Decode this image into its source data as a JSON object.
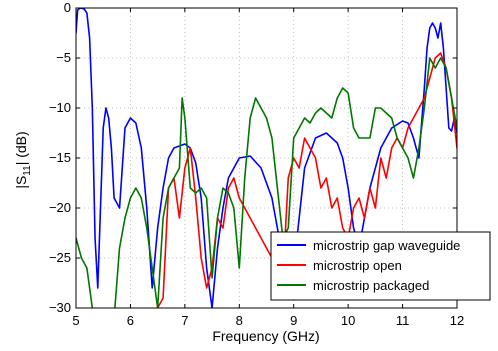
{
  "chart_data": {
    "type": "line",
    "title": "",
    "xlabel": "Frequency (GHz)",
    "ylabel": "|S11| (dB)",
    "ylabel_parts": {
      "prefix": "|S",
      "sub": "11",
      "suffix": "| (dB)"
    },
    "xlim": [
      5,
      12
    ],
    "ylim": [
      -30,
      0
    ],
    "xticks": [
      5,
      6,
      7,
      8,
      9,
      10,
      11,
      12
    ],
    "yticks": [
      0,
      -5,
      -10,
      -15,
      -20,
      -25,
      -30
    ],
    "ytick_labels": [
      "0",
      "−5",
      "−10",
      "−15",
      "−20",
      "−25",
      "−30"
    ],
    "grid": true,
    "legend_position": "bottom-right",
    "series": [
      {
        "name": "microstrip gap waveguide",
        "color": "#0000ff",
        "x": [
          5.0,
          5.03,
          5.08,
          5.15,
          5.2,
          5.25,
          5.3,
          5.35,
          5.4,
          5.45,
          5.5,
          5.55,
          5.6,
          5.65,
          5.7,
          5.8,
          5.9,
          6.0,
          6.1,
          6.2,
          6.3,
          6.4,
          6.5,
          6.6,
          6.7,
          6.8,
          6.9,
          7.0,
          7.1,
          7.2,
          7.3,
          7.4,
          7.5,
          7.6,
          7.7,
          7.8,
          7.9,
          8.0,
          8.2,
          8.4,
          8.6,
          8.8,
          8.9,
          9.0,
          9.1,
          9.2,
          9.4,
          9.6,
          9.8,
          9.9,
          10.0,
          10.1,
          10.2,
          10.4,
          10.6,
          10.8,
          11.0,
          11.1,
          11.2,
          11.3,
          11.4,
          11.45,
          11.5,
          11.55,
          11.6,
          11.65,
          11.7,
          11.75,
          11.8,
          11.85,
          11.9,
          11.95,
          12.0
        ],
        "y": [
          -2.5,
          -0.2,
          0.0,
          -0.1,
          -0.5,
          -3,
          -10,
          -23,
          -28,
          -20,
          -12,
          -10,
          -11,
          -14,
          -19,
          -20,
          -12,
          -11,
          -11.5,
          -14,
          -20,
          -28,
          -22,
          -18,
          -15,
          -14,
          -13.8,
          -13.6,
          -14,
          -15.5,
          -19,
          -26,
          -30,
          -24,
          -20,
          -17,
          -16,
          -15,
          -14.8,
          -16,
          -19,
          -25,
          -28,
          -26,
          -21,
          -16,
          -13,
          -12.5,
          -13.5,
          -15,
          -18,
          -22,
          -24,
          -18,
          -14,
          -12,
          -11.3,
          -11.5,
          -13,
          -15,
          -8,
          -4,
          -2,
          -1.5,
          -2,
          -3,
          -1.5,
          -4,
          -8,
          -12,
          -12.3,
          -11,
          -12.5
        ]
      },
      {
        "name": "microstrip open",
        "color": "#ff0000",
        "x": [
          5.0,
          5.2,
          5.4,
          5.6,
          5.8,
          6.0,
          6.2,
          6.4,
          6.6,
          6.7,
          6.8,
          6.9,
          7.0,
          7.1,
          7.2,
          7.3,
          7.4,
          7.5,
          7.6,
          7.7,
          7.8,
          7.9,
          8.0,
          8.1,
          8.2,
          8.4,
          8.6,
          8.8,
          8.9,
          9.0,
          9.1,
          9.2,
          9.3,
          9.4,
          9.5,
          9.6,
          9.7,
          9.8,
          9.9,
          10.0,
          10.1,
          10.2,
          10.3,
          10.4,
          10.5,
          10.6,
          10.7,
          10.8,
          10.9,
          11.0,
          11.1,
          11.2,
          11.3,
          11.4,
          11.5,
          11.6,
          11.7,
          11.8,
          11.9,
          12.0
        ],
        "y": [
          -31,
          -31,
          -31,
          -31,
          -31,
          -31,
          -31,
          -31,
          -29,
          -18,
          -17,
          -21,
          -16,
          -14,
          -19,
          -25,
          -28,
          -26,
          -21,
          -22,
          -18,
          -17,
          -19,
          -20,
          -21,
          -23,
          -25,
          -27,
          -17,
          -15,
          -16,
          -13,
          -14,
          -15,
          -18,
          -17,
          -20,
          -19,
          -22,
          -23,
          -20,
          -19,
          -21,
          -18,
          -20,
          -15,
          -17,
          -14,
          -13,
          -14,
          -12,
          -11,
          -10,
          -9,
          -7,
          -5,
          -4.5,
          -6,
          -9,
          -14
        ]
      },
      {
        "name": "microstrip packaged",
        "color": "#007700",
        "x": [
          5.0,
          5.1,
          5.2,
          5.3,
          5.4,
          5.5,
          5.6,
          5.7,
          5.8,
          5.9,
          6.0,
          6.1,
          6.2,
          6.3,
          6.4,
          6.5,
          6.6,
          6.7,
          6.8,
          6.9,
          6.95,
          7.0,
          7.1,
          7.2,
          7.3,
          7.4,
          7.5,
          7.6,
          7.7,
          7.8,
          7.9,
          8.0,
          8.1,
          8.2,
          8.3,
          8.4,
          8.5,
          8.6,
          8.7,
          8.8,
          8.9,
          9.0,
          9.1,
          9.2,
          9.3,
          9.4,
          9.5,
          9.6,
          9.7,
          9.8,
          9.9,
          10.0,
          10.1,
          10.2,
          10.3,
          10.4,
          10.5,
          10.6,
          10.7,
          10.8,
          10.9,
          11.0,
          11.1,
          11.2,
          11.3,
          11.4,
          11.5,
          11.6,
          11.7,
          11.8,
          11.9,
          12.0
        ],
        "y": [
          -23,
          -25,
          -26,
          -30,
          -31,
          -31,
          -31,
          -31,
          -24,
          -21,
          -19,
          -18,
          -19,
          -22,
          -26,
          -30,
          -21,
          -18,
          -17,
          -16,
          -9,
          -11,
          -18,
          -18.5,
          -18,
          -19,
          -27,
          -21,
          -18,
          -18.5,
          -20,
          -26,
          -17,
          -11,
          -9,
          -10,
          -11,
          -13,
          -18,
          -23,
          -22,
          -13,
          -12,
          -11,
          -11.5,
          -10.5,
          -10,
          -10.5,
          -11,
          -9,
          -8,
          -8.5,
          -12,
          -13,
          -13,
          -13,
          -10,
          -10,
          -10.5,
          -11,
          -13,
          -14,
          -15,
          -17,
          -14,
          -10,
          -5,
          -6,
          -5,
          -6,
          -9,
          -12
        ]
      }
    ]
  }
}
